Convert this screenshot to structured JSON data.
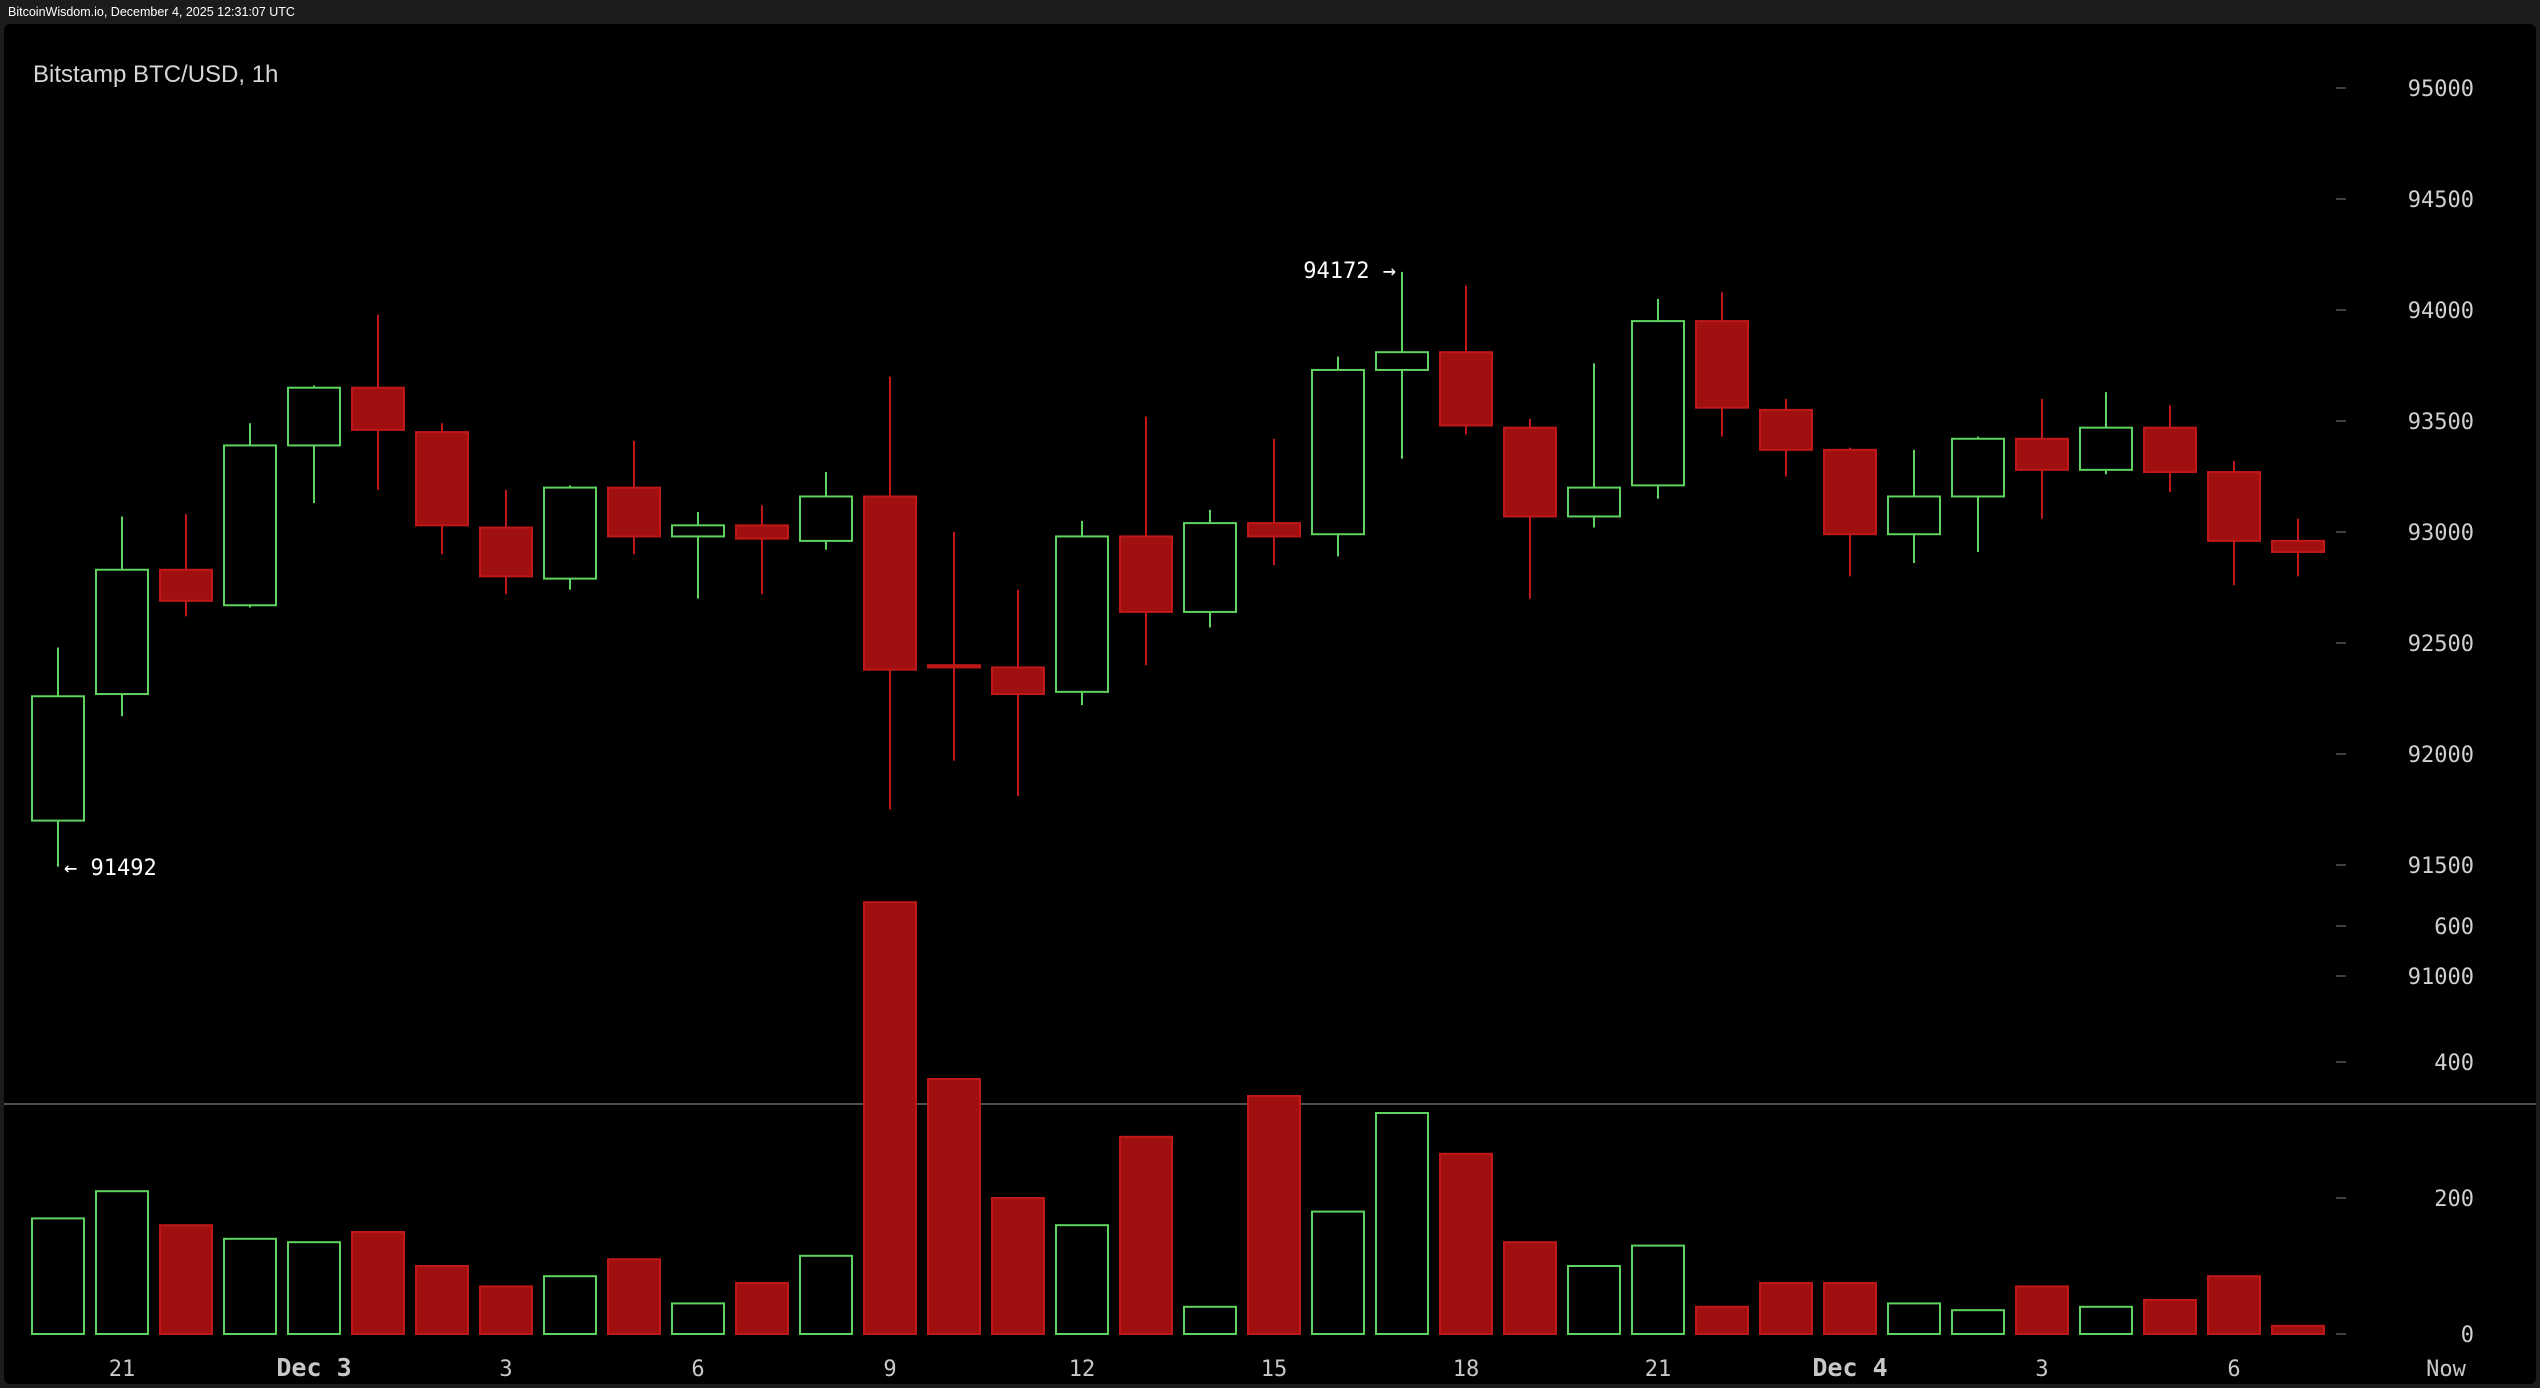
{
  "header": {
    "text": "BitcoinWisdom.io, December 4, 2025 12:31:07 UTC"
  },
  "chart_data": {
    "type": "candlestick",
    "title": "Bitstamp BTC/USD, 1h",
    "price_axis": {
      "ylim": [
        90500,
        95300
      ],
      "ticks": [
        "95000",
        "94500",
        "94000",
        "93500",
        "93000",
        "92500",
        "92000",
        "91500",
        "91000"
      ],
      "tick_values": [
        95000,
        94500,
        94000,
        93500,
        93000,
        92500,
        92000,
        91500,
        91000
      ]
    },
    "volume_axis": {
      "ylim": [
        0,
        650
      ],
      "ticks": [
        "600",
        "400",
        "200",
        "0"
      ],
      "tick_values": [
        600,
        400,
        200,
        0
      ]
    },
    "x_ticks": [
      {
        "label": "21",
        "index": 1,
        "day": false
      },
      {
        "label": "Dec 3",
        "index": 4,
        "day": true
      },
      {
        "label": "3",
        "index": 7,
        "day": false
      },
      {
        "label": "6",
        "index": 10,
        "day": false
      },
      {
        "label": "9",
        "index": 13,
        "day": false
      },
      {
        "label": "12",
        "index": 16,
        "day": false
      },
      {
        "label": "15",
        "index": 19,
        "day": false
      },
      {
        "label": "18",
        "index": 22,
        "day": false
      },
      {
        "label": "21",
        "index": 25,
        "day": false
      },
      {
        "label": "Dec 4",
        "index": 28,
        "day": true
      },
      {
        "label": "3",
        "index": 31,
        "day": false
      },
      {
        "label": "6",
        "index": 34,
        "day": false
      },
      {
        "label": "Now",
        "index": 37,
        "day": false
      }
    ],
    "annotations": {
      "low": {
        "label": "← 91492",
        "value": 91492,
        "index": 0
      },
      "high": {
        "label": "94172 →",
        "value": 94172,
        "index": 21
      }
    },
    "candles": [
      {
        "open": 91700,
        "high": 92480,
        "low": 91492,
        "close": 92260,
        "volume": 170
      },
      {
        "open": 92270,
        "high": 93070,
        "low": 92170,
        "close": 92830,
        "volume": 210
      },
      {
        "open": 92830,
        "high": 93080,
        "low": 92620,
        "close": 92690,
        "volume": 160
      },
      {
        "open": 92670,
        "high": 93490,
        "low": 92660,
        "close": 93390,
        "volume": 140
      },
      {
        "open": 93390,
        "high": 93660,
        "low": 93130,
        "close": 93650,
        "volume": 135
      },
      {
        "open": 93650,
        "high": 93980,
        "low": 93190,
        "close": 93460,
        "volume": 150
      },
      {
        "open": 93450,
        "high": 93490,
        "low": 92900,
        "close": 93030,
        "volume": 100
      },
      {
        "open": 93020,
        "high": 93190,
        "low": 92720,
        "close": 92800,
        "volume": 70
      },
      {
        "open": 92790,
        "high": 93210,
        "low": 92740,
        "close": 93200,
        "volume": 85
      },
      {
        "open": 93200,
        "high": 93410,
        "low": 92900,
        "close": 92980,
        "volume": 110
      },
      {
        "open": 92980,
        "high": 93090,
        "low": 92700,
        "close": 93030,
        "volume": 45
      },
      {
        "open": 93030,
        "high": 93120,
        "low": 92720,
        "close": 92970,
        "volume": 75
      },
      {
        "open": 92960,
        "high": 93270,
        "low": 92920,
        "close": 93160,
        "volume": 115
      },
      {
        "open": 93160,
        "high": 93700,
        "low": 91750,
        "close": 92380,
        "volume": 635
      },
      {
        "open": 92400,
        "high": 93000,
        "low": 91970,
        "close": 92390,
        "volume": 375
      },
      {
        "open": 92390,
        "high": 92740,
        "low": 91810,
        "close": 92270,
        "volume": 200
      },
      {
        "open": 92280,
        "high": 93050,
        "low": 92220,
        "close": 92980,
        "volume": 160
      },
      {
        "open": 92980,
        "high": 93520,
        "low": 92400,
        "close": 92640,
        "volume": 290
      },
      {
        "open": 92640,
        "high": 93100,
        "low": 92570,
        "close": 93040,
        "volume": 40
      },
      {
        "open": 93040,
        "high": 93420,
        "low": 92850,
        "close": 92980,
        "volume": 350
      },
      {
        "open": 92990,
        "high": 93790,
        "low": 92890,
        "close": 93730,
        "volume": 180
      },
      {
        "open": 93730,
        "high": 94172,
        "low": 93330,
        "close": 93810,
        "volume": 325
      },
      {
        "open": 93810,
        "high": 94110,
        "low": 93440,
        "close": 93480,
        "volume": 265
      },
      {
        "open": 93470,
        "high": 93510,
        "low": 92700,
        "close": 93070,
        "volume": 135
      },
      {
        "open": 93070,
        "high": 93760,
        "low": 93020,
        "close": 93200,
        "volume": 100
      },
      {
        "open": 93210,
        "high": 94050,
        "low": 93150,
        "close": 93950,
        "volume": 130
      },
      {
        "open": 93950,
        "high": 94080,
        "low": 93430,
        "close": 93560,
        "volume": 40
      },
      {
        "open": 93550,
        "high": 93600,
        "low": 93250,
        "close": 93370,
        "volume": 75
      },
      {
        "open": 93370,
        "high": 93380,
        "low": 92800,
        "close": 92990,
        "volume": 75
      },
      {
        "open": 92990,
        "high": 93370,
        "low": 92860,
        "close": 93160,
        "volume": 45
      },
      {
        "open": 93160,
        "high": 93430,
        "low": 92910,
        "close": 93420,
        "volume": 35
      },
      {
        "open": 93420,
        "high": 93600,
        "low": 93060,
        "close": 93280,
        "volume": 70
      },
      {
        "open": 93280,
        "high": 93630,
        "low": 93260,
        "close": 93470,
        "volume": 40
      },
      {
        "open": 93470,
        "high": 93570,
        "low": 93180,
        "close": 93270,
        "volume": 50
      },
      {
        "open": 93270,
        "high": 93320,
        "low": 92760,
        "close": 92960,
        "volume": 85
      },
      {
        "open": 92960,
        "high": 93060,
        "low": 92800,
        "close": 92910,
        "volume": 12
      }
    ],
    "colors": {
      "up": "#5fd35f",
      "down": "#a01010",
      "down_stroke": "#c01818",
      "grid_tick": "#555555",
      "divider": "#6a6a6a"
    },
    "grid": false
  }
}
